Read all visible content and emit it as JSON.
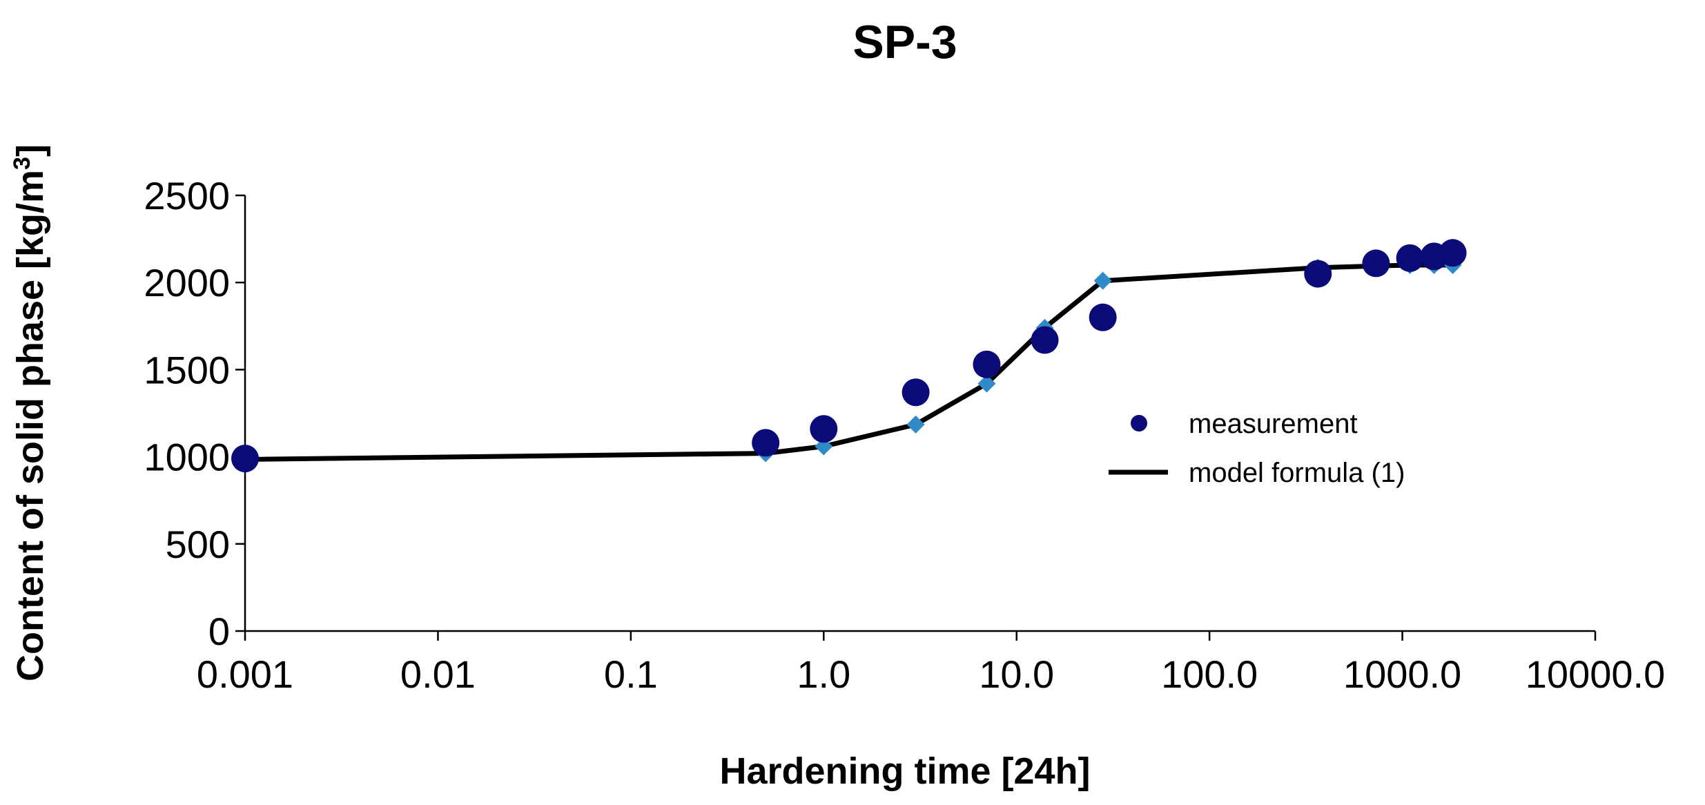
{
  "chart_data": {
    "type": "scatter",
    "title": "SP-3",
    "xlabel": "Hardening time [24h]",
    "ylabel": "Content of solid phase [kg/m",
    "ylabel_superscript": "3",
    "ylabel_suffix": "]",
    "x_scale": "log",
    "xlim": [
      0.001,
      10000
    ],
    "ylim": [
      0,
      2500
    ],
    "x_tick_values": [
      0.001,
      0.01,
      0.1,
      1,
      10,
      100,
      1000,
      10000
    ],
    "x_tick_labels": [
      "0.001",
      "0.01",
      "0.1",
      "1.0",
      "10.0",
      "100.0",
      "1000.0",
      "10000.0"
    ],
    "y_tick_values": [
      0,
      500,
      1000,
      1500,
      2000,
      2500
    ],
    "y_tick_labels": [
      "0",
      "500",
      "1000",
      "1500",
      "2000",
      "2500"
    ],
    "legend_position": "right-center",
    "series": [
      {
        "name": "measurement",
        "kind": "scatter",
        "color": "#0a0a78",
        "x": [
          0.001,
          0.5,
          1,
          3,
          7,
          14,
          28,
          365,
          730,
          1095,
          1460,
          1825
        ],
        "y": [
          990,
          1080,
          1160,
          1370,
          1530,
          1670,
          1800,
          2050,
          2110,
          2140,
          2150,
          2170
        ]
      },
      {
        "name": "model formula (1)",
        "kind": "line",
        "color": "#000000",
        "marker_color": "#2e8bc8",
        "x": [
          0.001,
          0.5,
          1,
          3,
          7,
          14,
          28,
          365,
          730,
          1095,
          1460,
          1825
        ],
        "y": [
          985,
          1020,
          1060,
          1185,
          1420,
          1740,
          2010,
          2085,
          2095,
          2100,
          2100,
          2100
        ]
      }
    ]
  }
}
